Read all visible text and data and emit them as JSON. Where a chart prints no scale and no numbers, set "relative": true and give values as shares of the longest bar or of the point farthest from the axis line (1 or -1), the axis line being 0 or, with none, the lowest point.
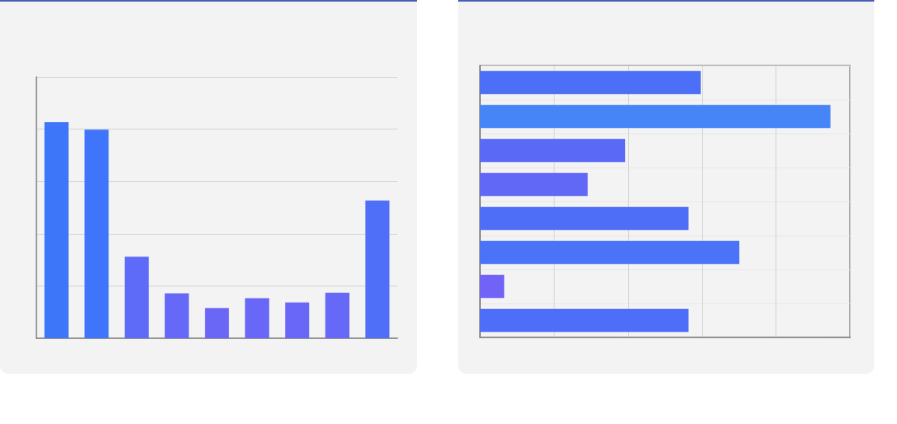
{
  "chart_data": [
    {
      "type": "bar",
      "relative": true,
      "categories": [
        null,
        null,
        null,
        null,
        null,
        null,
        null,
        null,
        null
      ],
      "values": [
        1,
        0.966,
        0.377,
        0.208,
        0.14,
        0.185,
        0.166,
        0.211,
        0.638
      ],
      "colors": [
        "#3e76fa",
        "#3f75fa",
        "#5e6bf8",
        "#6668f7",
        "#6a67f7",
        "#6867f7",
        "#6867f7",
        "#6668f7",
        "#506ff9"
      ],
      "grid": "y"
    },
    {
      "type": "bar",
      "orientation": "horizontal",
      "relative": true,
      "categories": [
        null,
        null,
        null,
        null,
        null,
        null,
        null,
        null
      ],
      "values": [
        0.63,
        1,
        0.414,
        0.307,
        0.595,
        0.74,
        0.069,
        0.595
      ],
      "colors": [
        "#4d6ff7",
        "#4585f8",
        "#5a6af6",
        "#6168f6",
        "#4f6ef7",
        "#4a73f7",
        "#7163f5",
        "#4f6ef7"
      ],
      "grid": true
    }
  ]
}
